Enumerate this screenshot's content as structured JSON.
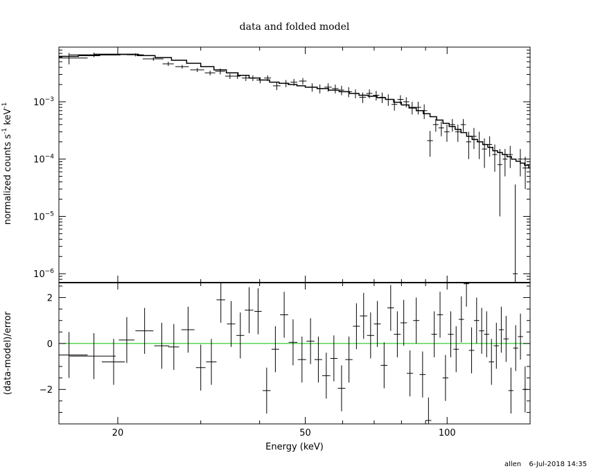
{
  "chart_data": [
    {
      "type": "scatter",
      "title": "data and folded model",
      "xlabel": "",
      "ylabel_parts": [
        "normalized counts s",
        "-1",
        " keV",
        "-1"
      ],
      "xscale": "log",
      "yscale": "log",
      "xlim": [
        15,
        150
      ],
      "ylim": [
        7e-07,
        0.009
      ],
      "yticks": [
        {
          "value": 1e-06,
          "base": "10",
          "exp": "-6"
        },
        {
          "value": 1e-05,
          "base": "10",
          "exp": "-5"
        },
        {
          "value": 0.0001,
          "base": "10",
          "exp": "-4"
        },
        {
          "value": 0.001,
          "base": "10",
          "exp": "-3"
        }
      ],
      "series": [
        {
          "name": "",
          "color": "#000000",
          "points": [
            [
              15.76,
              1.5,
              0.0058,
              0.0013
            ],
            [
              17.8,
              2.0,
              0.0066,
              0.0006
            ],
            [
              20.0,
              2.2,
              0.0068,
              0.0003
            ],
            [
              21.8,
              0.9,
              0.0066,
              0.0004
            ],
            [
              23.8,
              1.2,
              0.0056,
              0.0004
            ],
            [
              25.6,
              0.7,
              0.0046,
              0.0004
            ],
            [
              27.4,
              0.9,
              0.0041,
              0.0003
            ],
            [
              29.5,
              1.0,
              0.0036,
              0.0003
            ],
            [
              31.4,
              0.8,
              0.0032,
              0.0003
            ],
            [
              33.0,
              0.8,
              0.0034,
              0.0004
            ],
            [
              34.6,
              0.8,
              0.0028,
              0.0003
            ],
            [
              35.9,
              0.5,
              0.0028,
              0.0003
            ],
            [
              37.4,
              0.7,
              0.0026,
              0.0003
            ],
            [
              38.7,
              0.6,
              0.0026,
              0.0003
            ],
            [
              40.1,
              0.7,
              0.0024,
              0.0003
            ],
            [
              41.6,
              0.7,
              0.0026,
              0.0003
            ],
            [
              43.5,
              0.8,
              0.0019,
              0.0003
            ],
            [
              45.5,
              0.8,
              0.0021,
              0.0003
            ],
            [
              47.3,
              0.8,
              0.0022,
              0.0003
            ],
            [
              49.4,
              0.9,
              0.0023,
              0.0003
            ],
            [
              51.7,
              1.0,
              0.0018,
              0.0003
            ],
            [
              53.7,
              0.9,
              0.0017,
              0.0003
            ],
            [
              55.9,
              1.0,
              0.0018,
              0.0003
            ],
            [
              57.9,
              0.9,
              0.0017,
              0.0003
            ],
            [
              59.7,
              0.8,
              0.0016,
              0.0003
            ],
            [
              61.8,
              1.0,
              0.0015,
              0.0003
            ],
            [
              63.9,
              1.0,
              0.0014,
              0.00025
            ],
            [
              66.2,
              1.1,
              0.0012,
              0.00025
            ],
            [
              68.4,
              1.0,
              0.0014,
              0.00025
            ],
            [
              70.7,
              1.1,
              0.0013,
              0.00025
            ],
            [
              72.8,
              1.0,
              0.0012,
              0.00025
            ],
            [
              75.0,
              1.1,
              0.0011,
              0.00025
            ],
            [
              77.3,
              1.1,
              0.0009,
              0.0002
            ],
            [
              79.6,
              1.2,
              0.0011,
              0.0002
            ],
            [
              81.9,
              1.2,
              0.001,
              0.0002
            ],
            [
              84.3,
              1.2,
              0.0008,
              0.0002
            ],
            [
              86.8,
              1.3,
              0.0008,
              0.0002
            ],
            [
              89.4,
              1.3,
              0.0007,
              0.0002
            ],
            [
              92.0,
              1.3,
              0.00021,
              0.0001
            ],
            [
              94.6,
              1.3,
              0.0004,
              0.0001
            ],
            [
              97.2,
              1.3,
              0.00035,
              0.0001
            ],
            [
              99.9,
              1.3,
              0.0003,
              0.0001
            ],
            [
              102.6,
              1.4,
              0.0004,
              0.0001
            ],
            [
              105.4,
              1.4,
              0.0003,
              0.0001
            ],
            [
              108.2,
              1.4,
              0.0004,
              0.0001
            ],
            [
              111.1,
              1.4,
              0.0002,
              0.0001
            ],
            [
              114.0,
              1.4,
              0.00025,
              0.0001
            ],
            [
              117.0,
              1.5,
              0.0002,
              0.0001
            ],
            [
              120.0,
              1.5,
              0.00015,
              8e-05
            ],
            [
              123.1,
              1.5,
              0.00018,
              7e-05
            ],
            [
              126.2,
              1.5,
              0.00012,
              6e-05
            ],
            [
              129.4,
              1.5,
              8e-05,
              7e-05
            ],
            [
              132.7,
              1.6,
              0.0001,
              5e-05
            ],
            [
              136.1,
              1.7,
              0.00012,
              5e-05
            ],
            [
              139.5,
              1.7,
              1e-06,
              3.5e-05
            ],
            [
              143.0,
              1.8,
              0.0001,
              5e-05
            ],
            [
              146.5,
              1.9,
              7e-05,
              4e-05
            ]
          ]
        }
      ],
      "model": {
        "name": "",
        "color": "#000000",
        "points": [
          [
            14.8,
            0.0062
          ],
          [
            16.5,
            0.0064
          ],
          [
            18.3,
            0.0066
          ],
          [
            20.2,
            0.0067
          ],
          [
            22.0,
            0.0064
          ],
          [
            24.0,
            0.0059
          ],
          [
            26.0,
            0.0053
          ],
          [
            28.0,
            0.0047
          ],
          [
            30.0,
            0.0041
          ],
          [
            32.0,
            0.0036
          ],
          [
            34.0,
            0.0032
          ],
          [
            36.0,
            0.0029
          ],
          [
            38.0,
            0.0026
          ],
          [
            40.0,
            0.0024
          ],
          [
            42.0,
            0.0022
          ],
          [
            44.0,
            0.0021
          ],
          [
            46.0,
            0.002
          ],
          [
            48.0,
            0.0019
          ],
          [
            50.0,
            0.0018
          ],
          [
            53.0,
            0.0017
          ],
          [
            56.0,
            0.0016
          ],
          [
            59.0,
            0.0015
          ],
          [
            62.0,
            0.0014
          ],
          [
            65.0,
            0.0013
          ],
          [
            68.0,
            0.00125
          ],
          [
            71.0,
            0.00118
          ],
          [
            74.0,
            0.0011
          ],
          [
            77.0,
            0.00098
          ],
          [
            80.0,
            0.00088
          ],
          [
            83.0,
            0.00078
          ],
          [
            86.0,
            0.0007
          ],
          [
            89.0,
            0.00062
          ],
          [
            92.0,
            0.00055
          ],
          [
            95.0,
            0.00048
          ],
          [
            98.0,
            0.00042
          ],
          [
            101.0,
            0.00037
          ],
          [
            104.0,
            0.00033
          ],
          [
            107.0,
            0.00029
          ],
          [
            110.0,
            0.00025
          ],
          [
            113.0,
            0.00022
          ],
          [
            116.0,
            0.0002
          ],
          [
            119.0,
            0.00018
          ],
          [
            122.0,
            0.00016
          ],
          [
            125.0,
            0.00014
          ],
          [
            128.0,
            0.00013
          ],
          [
            131.0,
            0.00012
          ],
          [
            134.0,
            0.00011
          ],
          [
            137.0,
            0.0001
          ],
          [
            140.0,
            9.2e-05
          ],
          [
            143.0,
            8.5e-05
          ],
          [
            146.0,
            7.8e-05
          ],
          [
            149.0,
            7e-05
          ]
        ]
      }
    },
    {
      "type": "scatter",
      "title": "",
      "xlabel": "Energy (keV)",
      "ylabel": "(data-model)/error",
      "xscale": "log",
      "yscale": "linear",
      "xlim": [
        15,
        150
      ],
      "ylim": [
        -3.5,
        2.65
      ],
      "xticks": [
        {
          "value": 20,
          "label": "20"
        },
        {
          "value": 50,
          "label": "50"
        },
        {
          "value": 100,
          "label": "100"
        }
      ],
      "yticks": [
        {
          "value": -2,
          "label": "−2"
        },
        {
          "value": 0,
          "label": "0"
        },
        {
          "value": 2,
          "label": "2"
        }
      ],
      "reference_line": {
        "y": 0,
        "color": "#00c000"
      },
      "series": [
        {
          "name": "",
          "color": "#000000",
          "points": [
            [
              15.76,
              1.5,
              -0.5,
              1.0
            ],
            [
              17.8,
              2.0,
              -0.55,
              1.0
            ],
            [
              19.6,
              1.1,
              -0.8,
              1.0
            ],
            [
              20.9,
              0.8,
              0.15,
              1.0
            ],
            [
              22.8,
              1.0,
              0.55,
              1.0
            ],
            [
              24.8,
              0.9,
              -0.1,
              1.0
            ],
            [
              26.3,
              0.7,
              -0.15,
              1.0
            ],
            [
              28.2,
              0.9,
              0.6,
              1.0
            ],
            [
              30.0,
              0.7,
              -1.05,
              1.0
            ],
            [
              31.6,
              0.8,
              -0.8,
              1.0
            ],
            [
              33.1,
              0.7,
              1.9,
              1.0
            ],
            [
              34.8,
              0.7,
              0.85,
              1.0
            ],
            [
              36.4,
              0.7,
              0.35,
              1.0
            ],
            [
              38.0,
              0.8,
              1.45,
              1.0
            ],
            [
              39.7,
              0.7,
              1.4,
              1.0
            ],
            [
              41.4,
              0.8,
              -2.05,
              1.0
            ],
            [
              43.2,
              0.8,
              -0.25,
              1.0
            ],
            [
              45.1,
              0.9,
              1.25,
              1.0
            ],
            [
              47.1,
              1.0,
              0.05,
              1.0
            ],
            [
              49.2,
              1.0,
              -0.7,
              1.0
            ],
            [
              51.3,
              1.0,
              0.1,
              1.0
            ],
            [
              53.3,
              1.0,
              -0.7,
              1.0
            ],
            [
              55.4,
              1.1,
              -1.4,
              1.0
            ],
            [
              57.5,
              1.0,
              -0.65,
              1.0
            ],
            [
              59.7,
              1.1,
              -1.95,
              1.0
            ],
            [
              61.9,
              1.1,
              -0.7,
              1.0
            ],
            [
              64.2,
              1.1,
              0.75,
              1.0
            ],
            [
              66.5,
              1.2,
              1.2,
              1.0
            ],
            [
              68.8,
              1.2,
              0.35,
              1.0
            ],
            [
              71.1,
              1.2,
              0.85,
              1.0
            ],
            [
              73.5,
              1.2,
              -0.95,
              1.0
            ],
            [
              75.9,
              1.2,
              1.55,
              1.0
            ],
            [
              78.4,
              1.3,
              0.4,
              1.0
            ],
            [
              80.9,
              1.3,
              0.9,
              1.0
            ],
            [
              83.4,
              1.3,
              -1.3,
              1.0
            ],
            [
              86.0,
              1.3,
              1.0,
              1.0
            ],
            [
              88.7,
              1.3,
              -1.35,
              1.0
            ],
            [
              91.3,
              1.3,
              -3.35,
              1.0
            ],
            [
              93.9,
              1.3,
              0.4,
              1.0
            ],
            [
              96.6,
              1.4,
              1.25,
              1.0
            ],
            [
              99.2,
              1.4,
              -1.5,
              1.0
            ],
            [
              101.8,
              1.4,
              0.4,
              1.0
            ],
            [
              104.5,
              1.4,
              -0.25,
              1.0
            ],
            [
              107.2,
              1.4,
              1.05,
              1.0
            ],
            [
              109.9,
              1.5,
              2.6,
              1.0
            ],
            [
              112.7,
              1.5,
              -0.3,
              1.0
            ],
            [
              115.5,
              1.5,
              1.0,
              1.0
            ],
            [
              118.4,
              1.5,
              0.55,
              1.0
            ],
            [
              121.3,
              1.5,
              0.4,
              1.0
            ],
            [
              124.2,
              1.6,
              -0.8,
              1.0
            ],
            [
              127.2,
              1.6,
              -0.1,
              1.0
            ],
            [
              130.3,
              1.6,
              0.6,
              1.0
            ],
            [
              133.4,
              1.7,
              0.2,
              1.0
            ],
            [
              136.6,
              1.7,
              -2.05,
              1.0
            ],
            [
              139.8,
              1.7,
              -0.2,
              1.0
            ],
            [
              143.1,
              1.8,
              0.3,
              1.0
            ],
            [
              146.4,
              1.9,
              -2.0,
              1.0
            ]
          ]
        }
      ]
    }
  ],
  "footer": {
    "user": "allen",
    "timestamp": "6-Jul-2018 14:35"
  }
}
